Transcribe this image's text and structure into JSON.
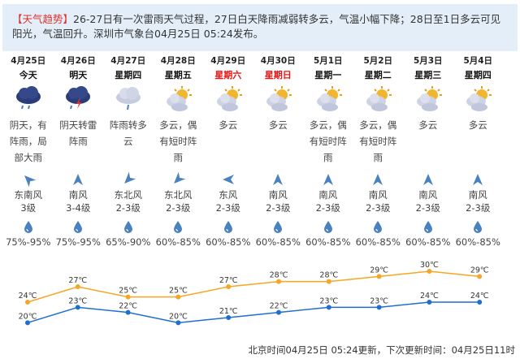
{
  "banner": {
    "tag": "【天气趋势】",
    "text": "26-27日有一次雷雨天气过程，27日白天降雨减弱转多云，气温小幅下降；28日至1日多云可见阳光，气温回升。深圳市气象台04月25日 05:24发布。"
  },
  "days": [
    {
      "date": "4月25日",
      "weekday": "今天",
      "weekend": false,
      "icon": "rain-cloud-icon",
      "desc": "阴天，有阵雨，局部大雨",
      "wind_dir": "东南风",
      "wind_level": "3级",
      "humidity": "75%-95%",
      "rot": -45
    },
    {
      "date": "4月26日",
      "weekday": "明天",
      "weekend": false,
      "icon": "thunderstorm-icon",
      "desc": "阴天转雷阵雨",
      "wind_dir": "南风",
      "wind_level": "3-4级",
      "humidity": "75%-95%",
      "rot": 0
    },
    {
      "date": "4月27日",
      "weekday": "星期四",
      "weekend": false,
      "icon": "shower-cloud-icon",
      "desc": "阵雨转多云",
      "wind_dir": "东北风",
      "wind_level": "2-3级",
      "humidity": "65%-90%",
      "rot": -135
    },
    {
      "date": "4月28日",
      "weekday": "星期五",
      "weekend": false,
      "icon": "partly-cloudy-icon",
      "desc": "多云，偶有短时阵雨",
      "wind_dir": "东北风",
      "wind_level": "2-3级",
      "humidity": "60%-85%",
      "rot": -135
    },
    {
      "date": "4月29日",
      "weekday": "星期六",
      "weekend": true,
      "icon": "partly-cloudy-icon",
      "desc": "多云",
      "wind_dir": "东风",
      "wind_level": "2-3级",
      "humidity": "60%-85%",
      "rot": -90
    },
    {
      "date": "4月30日",
      "weekday": "星期日",
      "weekend": true,
      "icon": "partly-cloudy-icon",
      "desc": "多云",
      "wind_dir": "南风",
      "wind_level": "2-3级",
      "humidity": "60%-85%",
      "rot": 0
    },
    {
      "date": "5月1日",
      "weekday": "星期一",
      "weekend": false,
      "icon": "partly-cloudy-icon",
      "desc": "多云，偶有短时阵雨",
      "wind_dir": "南风",
      "wind_level": "2-3级",
      "humidity": "60%-85%",
      "rot": 0
    },
    {
      "date": "5月2日",
      "weekday": "星期二",
      "weekend": false,
      "icon": "partly-cloudy-icon",
      "desc": "多云，偶有短时阵雨",
      "wind_dir": "南风",
      "wind_level": "2-3级",
      "humidity": "60%-85%",
      "rot": 0
    },
    {
      "date": "5月3日",
      "weekday": "星期三",
      "weekend": false,
      "icon": "partly-cloudy-icon",
      "desc": "多云",
      "wind_dir": "南风",
      "wind_level": "2-3级",
      "humidity": "60%-85%",
      "rot": 0
    },
    {
      "date": "5月4日",
      "weekday": "星期四",
      "weekend": false,
      "icon": "partly-cloudy-icon",
      "desc": "多云",
      "wind_dir": "南风",
      "wind_level": "2-3级",
      "humidity": "60%-85%",
      "rot": 0
    }
  ],
  "chart_data": {
    "type": "line",
    "unit": "℃",
    "series": [
      {
        "name": "high",
        "color": "#f5a623",
        "values": [
          24,
          27,
          25,
          25,
          27,
          28,
          28,
          29,
          30,
          29
        ]
      },
      {
        "name": "low",
        "color": "#1f6fd0",
        "values": [
          20,
          23,
          22,
          20,
          21,
          22,
          23,
          23,
          24,
          24
        ]
      }
    ]
  },
  "footer": "北京时间04月25日 05:24更新，下次更新时间：04月25日11时"
}
